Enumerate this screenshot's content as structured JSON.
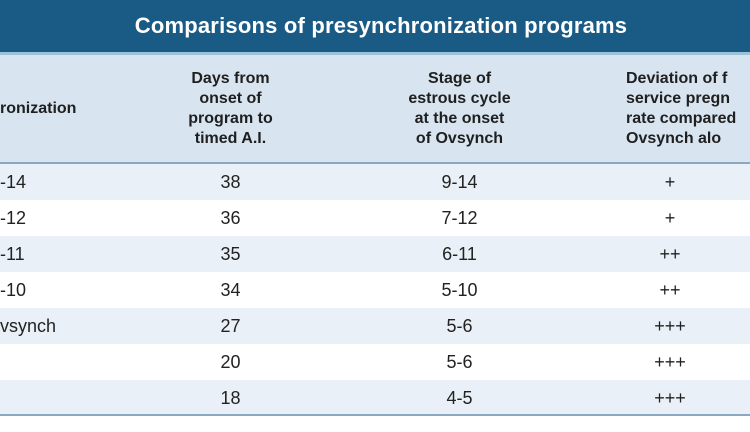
{
  "title": "Comparisons of presynchronization programs",
  "columns": [
    [
      "ronization"
    ],
    [
      "Days from",
      "onset of",
      "program to",
      "timed A.I."
    ],
    [
      "Stage of",
      "estrous cycle",
      "at the onset",
      "of Ovsynch"
    ],
    [
      "Deviation of f",
      "service pregn",
      "rate compared",
      "Ovsynch alo"
    ]
  ],
  "rows": [
    [
      "-14",
      "38",
      "9-14",
      "+"
    ],
    [
      "-12",
      "36",
      "7-12",
      "+"
    ],
    [
      "-11",
      "35",
      "6-11",
      "++"
    ],
    [
      "-10",
      "34",
      "5-10",
      "++"
    ],
    [
      "vsynch",
      "27",
      "5-6",
      "+++"
    ],
    [
      "",
      "20",
      "5-6",
      "+++"
    ],
    [
      "",
      "18",
      "4-5",
      "+++"
    ]
  ]
}
